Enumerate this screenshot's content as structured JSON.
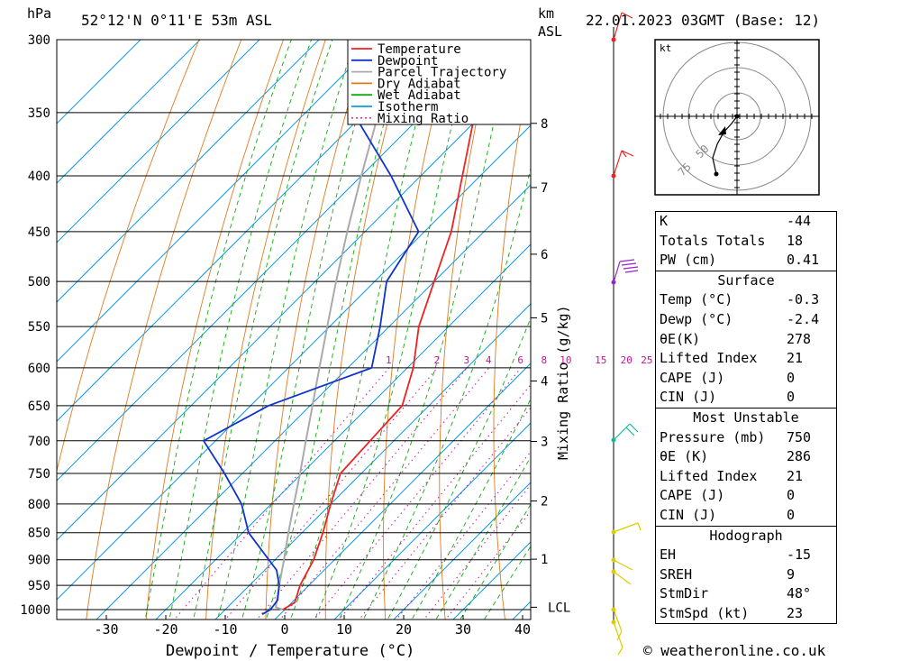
{
  "header": {
    "location": "52°12'N  0°11'E  53m  ASL",
    "datetime": "22.01.2023  03GMT  (Base: 12)",
    "hpa_label": "hPa",
    "km_label": "km",
    "asl_label": "ASL",
    "hodo_unit": "kt"
  },
  "footer": {
    "credit": "© weatheronline.co.uk"
  },
  "legend": [
    {
      "label": "Temperature",
      "color": "#ee2222",
      "style": "solid"
    },
    {
      "label": "Dewpoint",
      "color": "#1133cc",
      "style": "solid"
    },
    {
      "label": "Parcel Trajectory",
      "color": "#aaaaaa",
      "style": "solid"
    },
    {
      "label": "Dry Adiabat",
      "color": "#e07a1f",
      "style": "solid"
    },
    {
      "label": "Wet Adiabat",
      "color": "#11aa11",
      "style": "solid"
    },
    {
      "label": "Isotherm",
      "color": "#1199dd",
      "style": "solid"
    },
    {
      "label": "Mixing Ratio",
      "color": "#cc1199",
      "style": "dotted"
    }
  ],
  "indices": {
    "k_label": "K",
    "k_value": "-44",
    "tt_label": "Totals Totals",
    "tt_value": "18",
    "pw_label": "PW (cm)",
    "pw_value": "0.41"
  },
  "surface": {
    "title": "Surface",
    "temp_label": "Temp (°C)",
    "temp_value": "-0.3",
    "dewp_label": "Dewp (°C)",
    "dewp_value": "-2.4",
    "theta_label": "θE(K)",
    "theta_value": "278",
    "li_label": "Lifted Index",
    "li_value": "21",
    "cape_label": "CAPE (J)",
    "cape_value": "0",
    "cin_label": "CIN (J)",
    "cin_value": "0"
  },
  "most_unstable": {
    "title": "Most Unstable",
    "pres_label": "Pressure (mb)",
    "pres_value": "750",
    "theta_label": "θE (K)",
    "theta_value": "286",
    "li_label": "Lifted Index",
    "li_value": "21",
    "cape_label": "CAPE (J)",
    "cape_value": "0",
    "cin_label": "CIN (J)",
    "cin_value": "0"
  },
  "hodograph": {
    "title": "Hodograph",
    "eh_label": "EH",
    "eh_value": "-15",
    "sreh_label": "SREH",
    "sreh_value": "9",
    "stmdir_label": "StmDir",
    "stmdir_value": "48°",
    "stmspd_label": "StmSpd (kt)",
    "stmspd_value": "23"
  },
  "chart_data": {
    "type": "line",
    "subtype": "skew-T log-P diagram",
    "xlabel": "Dewpoint / Temperature (°C)",
    "ylabel": "hPa",
    "right_axis_label": "Mixing Ratio (g/kg)",
    "x_ticks": [
      -30,
      -20,
      -10,
      0,
      10,
      20,
      30,
      40
    ],
    "pressure_ticks": [
      300,
      350,
      400,
      450,
      500,
      550,
      600,
      650,
      700,
      750,
      800,
      850,
      900,
      950,
      1000
    ],
    "km_ticks": [
      {
        "label": "8",
        "p": 358
      },
      {
        "label": "7",
        "p": 410
      },
      {
        "label": "6",
        "p": 472
      },
      {
        "label": "5",
        "p": 540
      },
      {
        "label": "4",
        "p": 617
      },
      {
        "label": "3",
        "p": 701
      },
      {
        "label": "2",
        "p": 795
      },
      {
        "label": "1",
        "p": 899
      },
      {
        "label": "LCL",
        "p": 995
      }
    ],
    "mixing_ratio_labels": [
      "1",
      "2",
      "3",
      "4",
      "6",
      "8",
      "10",
      "15",
      "20",
      "25"
    ],
    "series": [
      {
        "name": "Temperature",
        "points": [
          {
            "p": 1000,
            "t": -0.3
          },
          {
            "p": 985,
            "t": 0.5
          },
          {
            "p": 950,
            "t": -1.5
          },
          {
            "p": 900,
            "t": -3.5
          },
          {
            "p": 850,
            "t": -6.5
          },
          {
            "p": 800,
            "t": -10
          },
          {
            "p": 750,
            "t": -13.5
          },
          {
            "p": 700,
            "t": -14
          },
          {
            "p": 650,
            "t": -14.5
          },
          {
            "p": 600,
            "t": -19
          },
          {
            "p": 550,
            "t": -25
          },
          {
            "p": 500,
            "t": -30
          },
          {
            "p": 450,
            "t": -35.5
          },
          {
            "p": 400,
            "t": -43
          },
          {
            "p": 350,
            "t": -51.5
          },
          {
            "p": 300,
            "t": -60
          }
        ]
      },
      {
        "name": "Dewpoint",
        "points": [
          {
            "p": 1010,
            "t": -3
          },
          {
            "p": 1000,
            "t": -2.4
          },
          {
            "p": 980,
            "t": -2.8
          },
          {
            "p": 950,
            "t": -5
          },
          {
            "p": 920,
            "t": -8
          },
          {
            "p": 850,
            "t": -19
          },
          {
            "p": 800,
            "t": -25
          },
          {
            "p": 750,
            "t": -33
          },
          {
            "p": 700,
            "t": -42
          },
          {
            "p": 650,
            "t": -37
          },
          {
            "p": 600,
            "t": -26
          },
          {
            "p": 550,
            "t": -31.5
          },
          {
            "p": 500,
            "t": -38
          },
          {
            "p": 450,
            "t": -41
          },
          {
            "p": 400,
            "t": -55
          },
          {
            "p": 350,
            "t": -72
          },
          {
            "p": 300,
            "t": -80
          }
        ]
      },
      {
        "name": "Parcel Trajectory",
        "points": [
          {
            "p": 1000,
            "t": -0.3
          },
          {
            "p": 995,
            "t": -1.9
          },
          {
            "p": 950,
            "t": -5
          },
          {
            "p": 900,
            "t": -8.5
          },
          {
            "p": 850,
            "t": -12.3
          },
          {
            "p": 800,
            "t": -16.2
          },
          {
            "p": 750,
            "t": -20.3
          },
          {
            "p": 700,
            "t": -24.8
          },
          {
            "p": 650,
            "t": -29.6
          },
          {
            "p": 600,
            "t": -34.8
          },
          {
            "p": 550,
            "t": -40.4
          },
          {
            "p": 500,
            "t": -46.5
          },
          {
            "p": 450,
            "t": -53
          },
          {
            "p": 400,
            "t": -60
          },
          {
            "p": 350,
            "t": -67.7
          },
          {
            "p": 300,
            "t": -76
          }
        ]
      }
    ],
    "hodograph_rings_kt": [
      25,
      50,
      75
    ]
  }
}
